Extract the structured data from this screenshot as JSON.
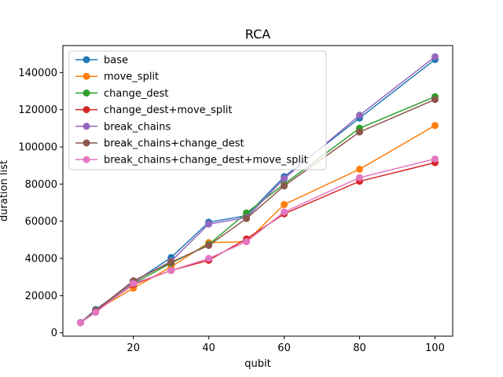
{
  "chart_data": {
    "type": "line",
    "title": "RCA",
    "xlabel": "qubit",
    "ylabel": "duration list",
    "xlim": [
      1.3,
      104.7
    ],
    "ylim": [
      -1800,
      154500
    ],
    "x": [
      6,
      10,
      20,
      30,
      40,
      50,
      60,
      80,
      100
    ],
    "xticks": [
      20,
      40,
      60,
      80,
      100
    ],
    "yticks": [
      0,
      20000,
      40000,
      60000,
      80000,
      100000,
      120000,
      140000
    ],
    "ytick_labels": [
      "0",
      "20000",
      "40000",
      "60000",
      "80000",
      "100000",
      "120000",
      "140000"
    ],
    "grid": false,
    "legend_position": "upper-left",
    "series": [
      {
        "name": "base",
        "color": "#1f77b4",
        "values": [
          5500,
          12500,
          27000,
          40500,
          59500,
          63000,
          84000,
          115500,
          147000
        ]
      },
      {
        "name": "move_split",
        "color": "#ff7f0e",
        "values": [
          5500,
          12000,
          24000,
          35500,
          48500,
          49000,
          69000,
          88000,
          111500
        ]
      },
      {
        "name": "change_dest",
        "color": "#2ca02c",
        "values": [
          5500,
          12000,
          26500,
          37500,
          47500,
          64500,
          80000,
          110000,
          127000
        ]
      },
      {
        "name": "change_dest+move_split",
        "color": "#d62728",
        "values": [
          5500,
          11500,
          26000,
          33500,
          39000,
          50500,
          64000,
          81500,
          91500
        ]
      },
      {
        "name": "break_chains",
        "color": "#9467bd",
        "values": [
          5500,
          12000,
          27500,
          38500,
          58500,
          62000,
          83000,
          117000,
          148500
        ]
      },
      {
        "name": "break_chains+change_dest",
        "color": "#8c564b",
        "values": [
          5500,
          12000,
          28000,
          38000,
          47000,
          61500,
          79000,
          108000,
          125500
        ]
      },
      {
        "name": "break_chains+change_dest+move_split",
        "color": "#e377c2",
        "values": [
          5500,
          11000,
          26500,
          33500,
          40000,
          49000,
          65000,
          83500,
          93500
        ]
      }
    ]
  }
}
